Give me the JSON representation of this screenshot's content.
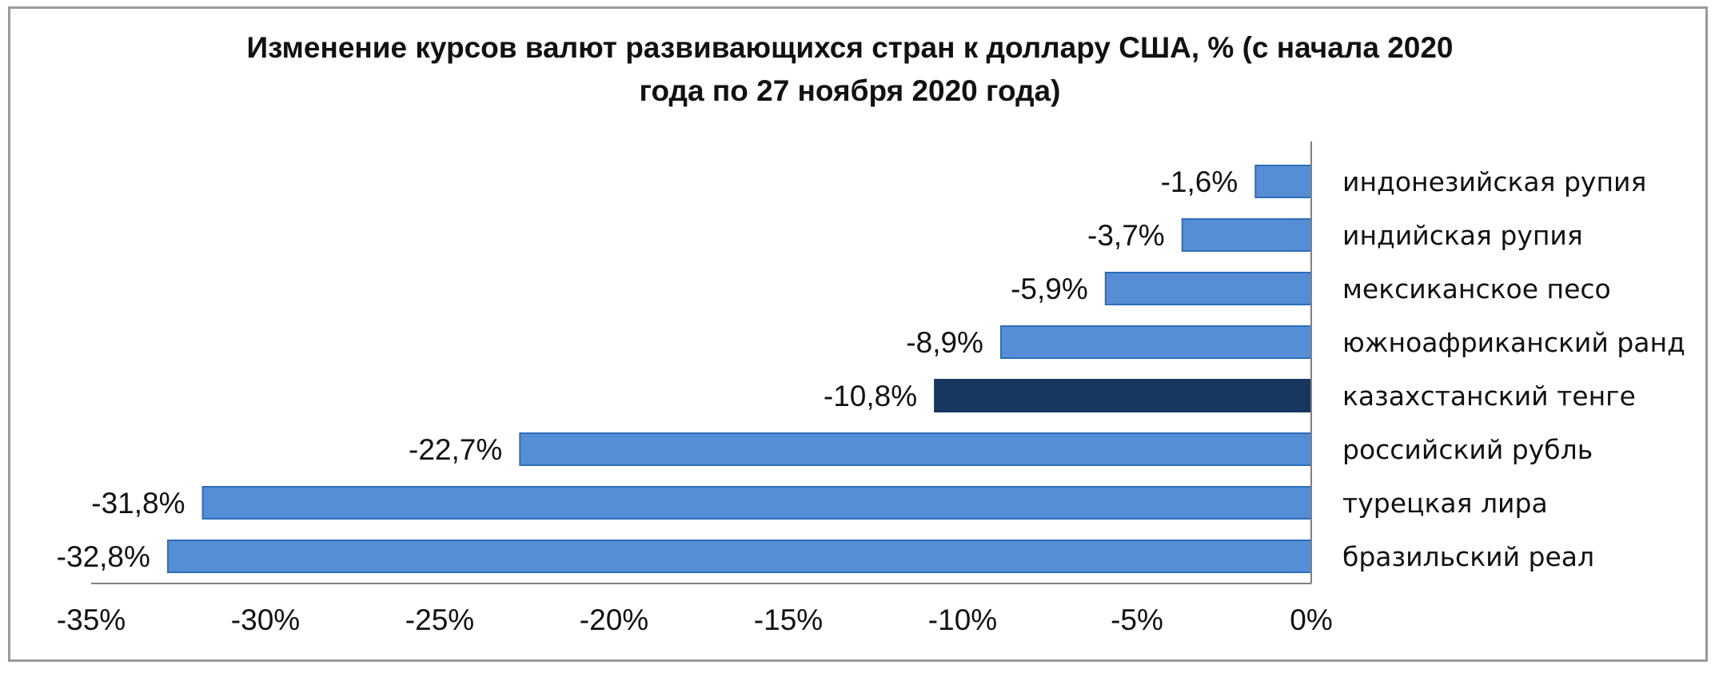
{
  "chart_data": {
    "type": "bar",
    "orientation": "horizontal",
    "title_lines": [
      "Изменение курсов валют развивающихся стран к доллару США, % (с начала 2020",
      "года по 27 ноября 2020 года)"
    ],
    "categories": [
      "индонезийская рупия",
      "индийская рупия",
      "мексиканское песо",
      "южноафриканский ранд",
      "казахстанский тенге",
      "российский рубль",
      "турецкая лира",
      "бразильский реал"
    ],
    "values": [
      -1.6,
      -3.7,
      -5.9,
      -8.9,
      -10.8,
      -22.7,
      -31.8,
      -32.8
    ],
    "data_labels": [
      "-1,6%",
      "-3,7%",
      "-5,9%",
      "-8,9%",
      "-10,8%",
      "-22,7%",
      "-31,8%",
      "-32,8%"
    ],
    "xlim": [
      -35,
      0
    ],
    "x_ticks": [
      -35,
      -30,
      -25,
      -20,
      -15,
      -10,
      -5,
      0
    ],
    "x_tick_labels": [
      "-35%",
      "-30%",
      "-25%",
      "-20%",
      "-15%",
      "-10%",
      "-5%",
      "0%"
    ],
    "xlabel": "",
    "ylabel": "",
    "grid": false,
    "legend": "none",
    "bar_color": "#558ED5",
    "bar_edge_color": "#2F6EBA",
    "highlight_category": "казахстанский тенге",
    "highlight_color": "#17375E",
    "axis_color": "#808080"
  }
}
